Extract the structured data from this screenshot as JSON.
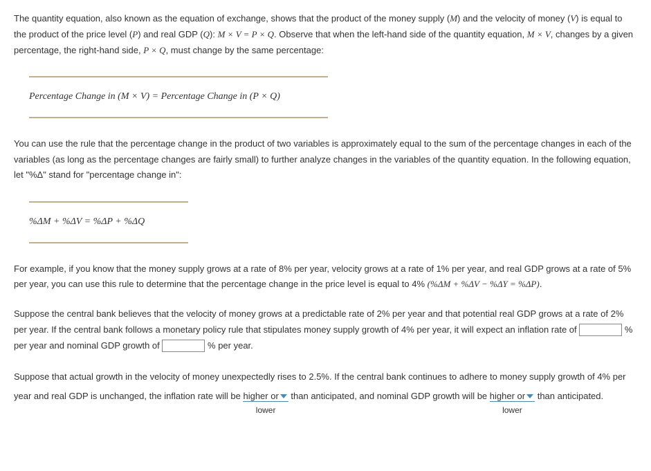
{
  "text_color": "#333333",
  "background_color": "#ffffff",
  "rule_color": "#c0af8a",
  "dropdown_accent": "#4a8ab0",
  "body_font_size": 13,
  "equation_font_size": 14,
  "para1_parts": {
    "a": "The quantity equation, also known as the equation of exchange, shows that the product of the money supply (",
    "m": "M",
    "b": ") and the velocity of money (",
    "v": "V",
    "c": ") is equal to the product of the price level (",
    "p": "P",
    "d": ") and real GDP (",
    "q": "Q",
    "e": "): ",
    "eq1": "M × V = P × Q",
    "f": ". Observe that when the left-hand side of the quantity equation, ",
    "mv": "M × V",
    "g": ", changes by a given percentage, the right-hand side, ",
    "pq": "P × Q",
    "h": ", must change by the same percentage:"
  },
  "equation1": "Percentage Change in (M × V)  =  Percentage Change in (P × Q)",
  "para2": "You can use the rule that the percentage change in the product of two variables is approximately equal to the sum of the percentage changes in each of the variables (as long as the percentage changes are fairly small) to further analyze changes in the variables of the quantity equation. In the following equation, let \"%Δ\" stand for \"percentage change in\":",
  "equation2": "%ΔM + %ΔV  =  %ΔP + %ΔQ",
  "para3_parts": {
    "a": "For example, if you know that the money supply grows at a rate of 8% per year, velocity grows at a rate of 1% per year, and real GDP grows at a rate of 5% per year, you can use this rule to determine that the percentage change in the price level is equal to 4% ",
    "formula": "(%ΔM + %ΔV − %ΔY = %ΔP)",
    "b": "."
  },
  "para4_parts": {
    "a": "Suppose the central bank believes that the velocity of money grows at a predictable rate of 2% per year and that potential real GDP grows at a rate of 2% per year. If the central bank follows a monetary policy rule that stipulates money supply growth of 4% per year, it will expect an inflation rate of ",
    "suffix1": " per year and nominal GDP growth of ",
    "suffix2": " per year.",
    "unit1": "%",
    "unit2": "%"
  },
  "para5_parts": {
    "a": "Suppose that actual growth in the velocity of money unexpectedly rises to 2.5%. If the central bank continues to adhere to money supply growth of 4% per year and real GDP is unchanged, the inflation rate will be ",
    "b": " than anticipated, and nominal GDP growth will be ",
    "c": " than anticipated."
  },
  "dropdown1": {
    "selected": "higher or",
    "alt": "lower"
  },
  "dropdown2": {
    "selected": "higher or",
    "alt": "lower"
  },
  "input1_value": "",
  "input2_value": ""
}
